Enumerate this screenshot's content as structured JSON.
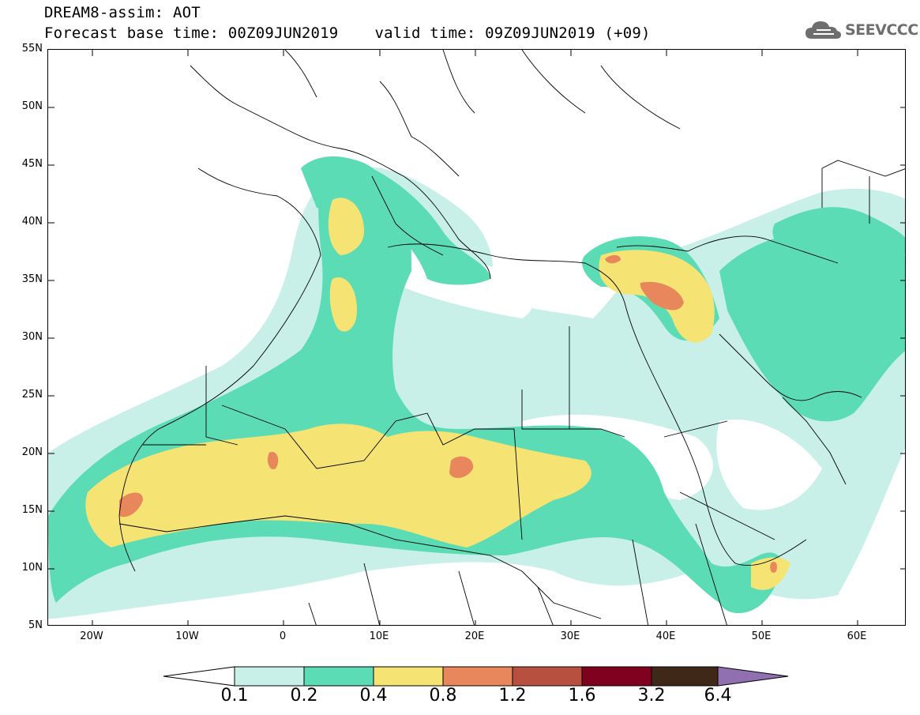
{
  "title": {
    "line1": "DREAM8-assim: AOT",
    "base_time": "Forecast base time: 00Z09JUN2019",
    "valid_time": "valid time: 09Z09JUN2019 (+09)"
  },
  "logo": {
    "text": "SEEVCCC",
    "icon": "cloud-icon"
  },
  "axes": {
    "lat_labels": [
      "55N",
      "50N",
      "45N",
      "40N",
      "35N",
      "30N",
      "25N",
      "20N",
      "15N",
      "10N",
      "5N"
    ],
    "lon_labels": [
      "20W",
      "10W",
      "0",
      "10E",
      "20E",
      "30E",
      "40E",
      "50E",
      "60E"
    ]
  },
  "colorbar": {
    "labels": [
      "0.1",
      "0.2",
      "0.4",
      "0.8",
      "1.2",
      "1.6",
      "3.2",
      "6.4"
    ],
    "colors": [
      "#ffffff",
      "#c8f0e8",
      "#5cdcb4",
      "#f5e374",
      "#e8875c",
      "#b85040",
      "#800020",
      "#402818",
      "#9070b0"
    ]
  },
  "colors": {
    "level1": "#c8f0e8",
    "level2": "#5cdcb4",
    "level3": "#f5e374",
    "level4": "#e8875c"
  }
}
